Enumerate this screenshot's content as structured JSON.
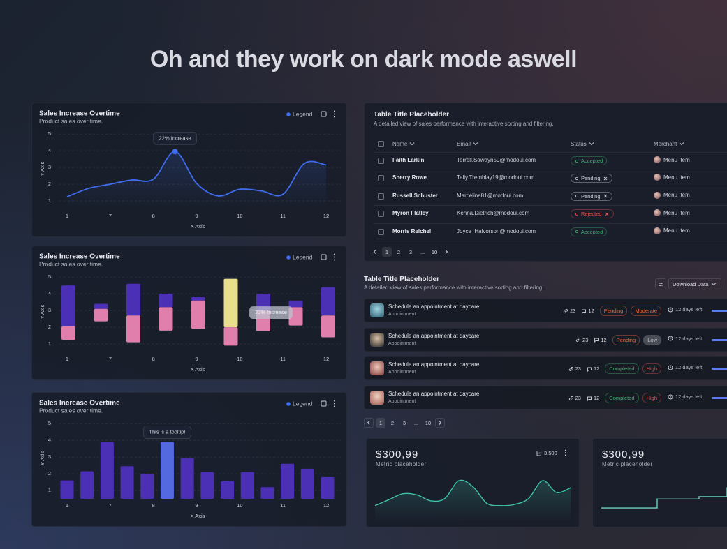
{
  "headline": "Oh and they work on dark mode aswell",
  "charts": [
    {
      "type": "line",
      "title": "Sales Increase Overtime",
      "subtitle": "Product sales over time.",
      "legend": "Legend",
      "legend_color": "#3f6df0",
      "y_label": "Y Axis",
      "x_label": "X Axis",
      "x_tick_labels": [
        "1",
        "7",
        "8",
        "9",
        "10",
        "11",
        "12"
      ],
      "values": [
        1.25,
        1.75,
        2.0,
        2.25,
        2.3,
        3.95,
        2.05,
        1.3,
        1.7,
        1.6,
        1.4,
        3.25,
        3.15
      ],
      "color": "#3f6df0",
      "ylim": [
        0.5,
        5.3
      ],
      "yticks": [
        1,
        2,
        3,
        4,
        5
      ],
      "grid": true,
      "annotations": [
        {
          "text": "22% Increase",
          "at": 5
        }
      ]
    },
    {
      "type": "floating-bar",
      "title": "Sales Increase Overtime",
      "subtitle": "Product sales over time.",
      "legend": "Legend",
      "legend_color": "#3f6df0",
      "y_label": "Y Axis",
      "x_label": "X Axis",
      "x_tick_labels": [
        "1",
        "7",
        "8",
        "9",
        "10",
        "11",
        "12"
      ],
      "series": [
        {
          "color": "#4b2fb5",
          "highlight": {
            "at": 5,
            "color": "#e8df8c"
          },
          "values": [
            [
              2.05,
              4.5
            ],
            [
              3.1,
              3.4
            ],
            [
              2.7,
              4.6
            ],
            [
              3.2,
              4.0
            ],
            [
              3.6,
              3.8
            ],
            [
              2.0,
              4.9
            ],
            [
              3.0,
              4.0
            ],
            [
              3.2,
              3.6
            ],
            [
              2.7,
              4.4
            ]
          ]
        },
        {
          "color": "#e07fac",
          "values": [
            [
              1.25,
              2.05
            ],
            [
              2.35,
              3.1
            ],
            [
              1.1,
              2.7
            ],
            [
              1.8,
              3.2
            ],
            [
              1.9,
              3.6
            ],
            [
              0.9,
              2.0
            ],
            [
              1.75,
              3.0
            ],
            [
              2.1,
              3.2
            ],
            [
              1.4,
              2.7
            ]
          ]
        }
      ],
      "ylim": [
        0.5,
        5.3
      ],
      "yticks": [
        1,
        2,
        3,
        4,
        5
      ],
      "grid": true,
      "annotations": [
        {
          "text": "22% Increase",
          "at": 6
        }
      ]
    },
    {
      "type": "bar",
      "title": "Sales Increase Overtime",
      "subtitle": "Product sales over time.",
      "legend": "Legend",
      "legend_color": "#3f6df0",
      "y_label": "Y Axis",
      "x_label": "X Axis",
      "x_tick_labels": [
        "1",
        "7",
        "8",
        "9",
        "10",
        "11",
        "12"
      ],
      "values": [
        1.6,
        2.15,
        3.9,
        2.45,
        2.0,
        3.9,
        2.95,
        2.1,
        1.55,
        2.1,
        1.2,
        2.6,
        2.3,
        1.8
      ],
      "color": "#4b2fb5",
      "highlight": {
        "at": 5,
        "color": "#5468e0"
      },
      "ylim": [
        0.5,
        5.3
      ],
      "yticks": [
        1,
        2,
        3,
        4,
        5
      ],
      "grid": true,
      "annotations": [
        {
          "text": "This is a tooltip!",
          "at": 5
        }
      ]
    }
  ],
  "table": {
    "title": "Table Title Placeholder",
    "description": "A detailed view of sales performance with interactive sorting and filtering.",
    "columns": [
      "Name",
      "Email",
      "Status",
      "Merchant"
    ],
    "rows": [
      {
        "name": "Faith Larkin",
        "email": "Terrell.Sawayn59@modoui.com",
        "status": {
          "text": "Accepted",
          "color": "#3fae6a"
        },
        "merchant": "Menu Item"
      },
      {
        "name": "Sherry Rowe",
        "email": "Telly.Tremblay19@modoui.com",
        "status": {
          "text": "Pending",
          "color": "#c9ccd6"
        },
        "merchant": "Menu Item"
      },
      {
        "name": "Russell Schuster",
        "email": "Marcelina81@modoui.com",
        "status": {
          "text": "Pending",
          "color": "#c9ccd6"
        },
        "merchant": "Menu Item"
      },
      {
        "name": "Myron Flatley",
        "email": "Kenna.Dietrich@modoui.com",
        "status": {
          "text": "Rejected",
          "color": "#e0524f"
        },
        "merchant": "Menu Item"
      },
      {
        "name": "Morris Reichel",
        "email": "Joyce_Halvorson@modoui.com",
        "status": {
          "text": "Accepted",
          "color": "#3fae6a"
        },
        "merchant": "Menu Item"
      }
    ],
    "pagination": [
      "1",
      "2",
      "3",
      "...",
      "10"
    ]
  },
  "tasks": {
    "title": "Table Title Placeholder",
    "description": "A detailed view of sales performance with interactive sorting and filtering.",
    "action": "Download Data",
    "items": [
      {
        "title": "Schedule an appointment at daycare",
        "subtitle": "Appointment",
        "links": 23,
        "comments": 12,
        "status": {
          "text": "Pending",
          "color": "#e8653a"
        },
        "priority": {
          "text": "Moderate",
          "color": "#e8653a"
        },
        "due": "12 days left"
      },
      {
        "title": "Schedule an appointment at daycare",
        "subtitle": "Appointment",
        "links": 23,
        "comments": 12,
        "status": {
          "text": "Pending",
          "color": "#e8653a"
        },
        "priority": {
          "text": "Low",
          "color": "#b8bac4",
          "background": "#4a4c56"
        },
        "due": "12 days left"
      },
      {
        "title": "Schedule an appointment at daycare",
        "subtitle": "Appointment",
        "links": 23,
        "comments": 12,
        "status": {
          "text": "Completed",
          "color": "#3fae6a"
        },
        "priority": {
          "text": "High",
          "color": "#e0524f"
        },
        "due": "12 days left"
      },
      {
        "title": "Schedule an appointment at daycare",
        "subtitle": "Appointment",
        "links": 23,
        "comments": 12,
        "status": {
          "text": "Completed",
          "color": "#3fae6a"
        },
        "priority": {
          "text": "High",
          "color": "#e0524f"
        },
        "due": "12 days left"
      }
    ],
    "pagination": [
      "1",
      "2",
      "3",
      "...",
      "10"
    ]
  },
  "metrics": [
    {
      "type": "line",
      "value": "$300,99",
      "label": "Metric placeholder",
      "badge": "3,500",
      "color": "#3fc2a8",
      "ylim": [
        0,
        100
      ],
      "values": [
        18,
        28,
        38,
        36,
        26,
        30,
        60,
        50,
        22,
        18,
        20,
        30,
        60,
        40,
        48
      ]
    },
    {
      "type": "step",
      "value": "$300,99",
      "label": "Metric placeholder",
      "color": "#6fd0bb",
      "ylim": [
        0,
        100
      ],
      "values": [
        14,
        14,
        14,
        14,
        29,
        29,
        29,
        33,
        33,
        48
      ]
    }
  ]
}
